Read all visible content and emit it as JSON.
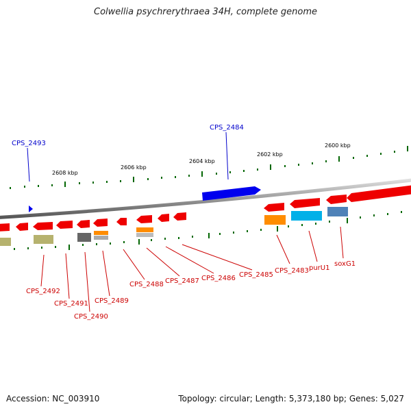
{
  "title": "Colwellia psychrerythraea 34H, complete genome",
  "footer": {
    "accession": "Accession: NC_003910",
    "stats": "Topology: circular; Length: 5,373,180 bp; Genes: 5,027"
  },
  "ruler": [
    "2608 kbp",
    "2606 kbp",
    "2604 kbp",
    "2602 kbp",
    "2600 kbp"
  ],
  "labels": {
    "forward": [
      "CPS_2493",
      "CPS_2484"
    ],
    "reverse": [
      "CPS_2492",
      "CPS_2491",
      "CPS_2490",
      "CPS_2489",
      "CPS_2488",
      "CPS_2487",
      "CPS_2486",
      "CPS_2485",
      "CPS_2483",
      "purU1",
      "soxG1"
    ]
  },
  "colors": {
    "forward_label": "#0000cc",
    "reverse_label": "#cc0000",
    "forward_gene": "#0000ee",
    "reverse_gene": "#ee0000",
    "tick": "#006600"
  }
}
